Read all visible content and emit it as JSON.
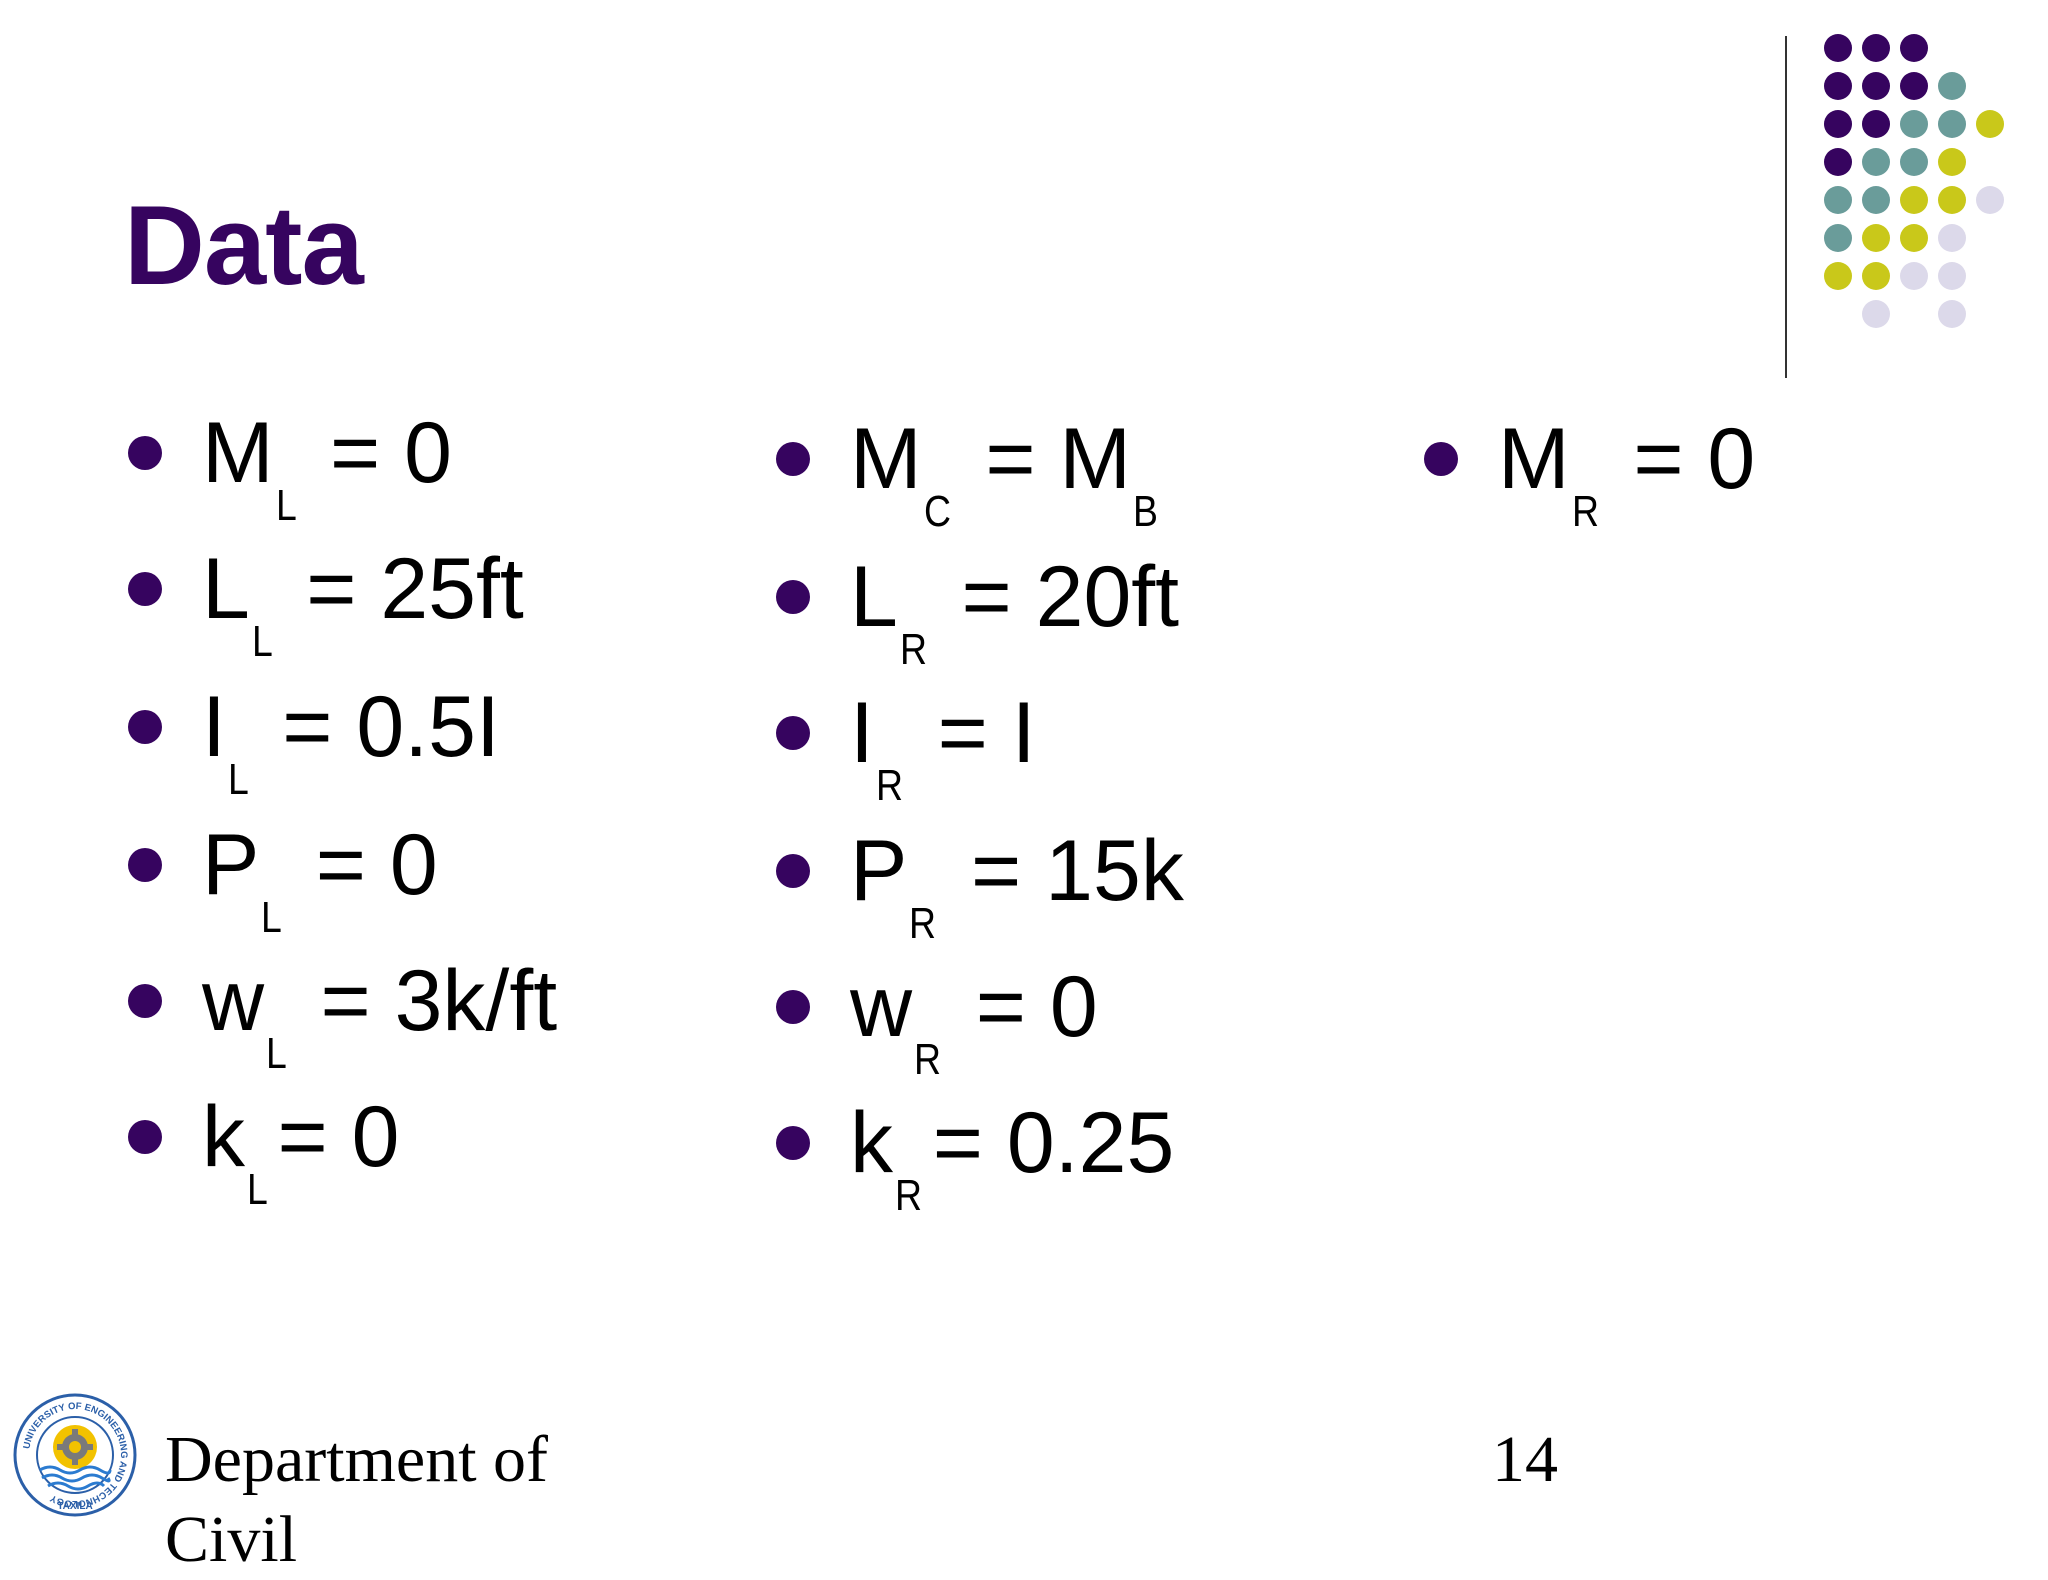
{
  "slide": {
    "title": "Data",
    "columns": [
      {
        "items": [
          {
            "sym": "M",
            "sub": "L",
            "rest": " = 0"
          },
          {
            "sym": "L",
            "sub": "L",
            "rest": " = 25ft"
          },
          {
            "sym": "I",
            "sub": "L",
            "rest": " = 0.5I"
          },
          {
            "sym": "P",
            "sub": "L",
            "rest": " = 0"
          },
          {
            "sym": "w",
            "sub": "L",
            "rest": " = 3k/ft"
          },
          {
            "sym": "k",
            "sub": "L",
            "rest": "= 0"
          }
        ]
      },
      {
        "items": [
          {
            "sym": "M",
            "sub": "C",
            "rest": " = M",
            "sub2": "B"
          },
          {
            "sym": "L",
            "sub": "R",
            "rest": " = 20ft"
          },
          {
            "sym": "I",
            "sub": "R",
            "rest": " = I"
          },
          {
            "sym": "P",
            "sub": "R",
            "rest": " = 15k"
          },
          {
            "sym": "w",
            "sub": "R",
            "rest": " = 0"
          },
          {
            "sym": "k",
            "sub": "R",
            "rest": "= 0.25"
          }
        ]
      },
      {
        "items": [
          {
            "sym": "M",
            "sub": "R",
            "rest": " = 0"
          }
        ]
      }
    ],
    "footer": {
      "department": "Department of Civil",
      "page_number": "14"
    },
    "logo": {
      "icon": "university-seal-icon",
      "ring_text": "UNIVERSITY OF ENGINEERING AND TECHNOLOGY",
      "city": "TAXILA"
    },
    "colors": {
      "title": "#36045f",
      "bullet": "#36045f",
      "dot_purple": "#36045f",
      "dot_teal": "#6a9c9a",
      "dot_olive": "#c9c81a",
      "dot_lavender": "#dcd9ea"
    }
  }
}
